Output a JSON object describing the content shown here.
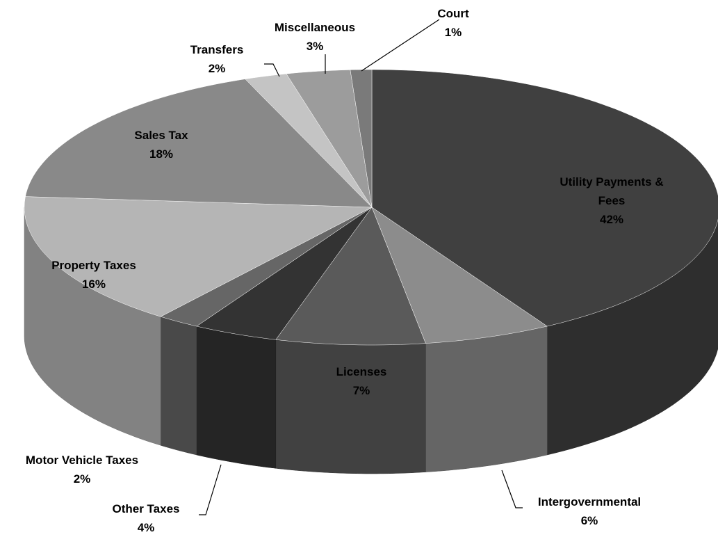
{
  "chart_data": {
    "type": "pie3d",
    "categories": [
      "Utility Payments & Fees",
      "Intergovernmental",
      "Licenses",
      "Other Taxes",
      "Motor Vehicle Taxes",
      "Property Taxes",
      "Sales Tax",
      "Transfers",
      "Miscellaneous",
      "Court"
    ],
    "values": [
      42,
      6,
      7,
      4,
      2,
      16,
      18,
      2,
      3,
      1
    ],
    "value_labels": [
      "42%",
      "6%",
      "7%",
      "4%",
      "2%",
      "16%",
      "18%",
      "2%",
      "3%",
      "1%"
    ],
    "colors": [
      "#404040",
      "#8c8c8c",
      "#5a5a5a",
      "#333333",
      "#666666",
      "#b5b5b5",
      "#898989",
      "#c4c4c4",
      "#9c9c9c",
      "#7a7a7a"
    ]
  }
}
